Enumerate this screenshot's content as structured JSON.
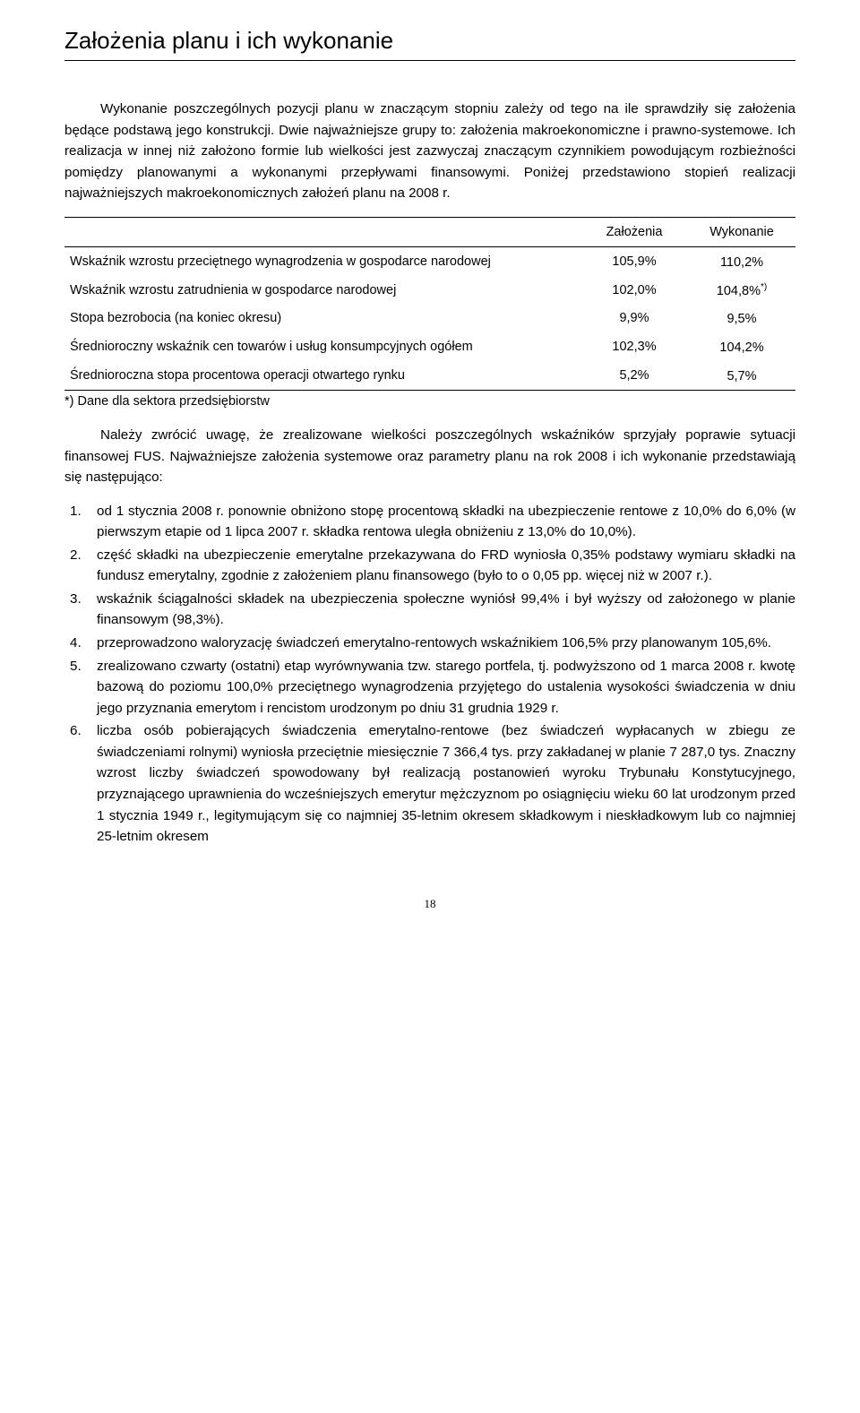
{
  "heading": "Założenia planu i ich wykonanie",
  "intro": "Wykonanie poszczególnych pozycji planu w znaczącym stopniu zależy od tego na ile sprawdziły się założenia będące podstawą jego konstrukcji. Dwie najważniejsze grupy to: założenia makroekonomiczne i prawno-systemowe. Ich realizacja w innej niż założono formie lub wielkości jest zazwyczaj znaczącym czynnikiem powodującym rozbieżności pomiędzy planowanymi a wykonanymi przepływami finansowymi. Poniżej przedstawiono stopień realizacji najważniejszych makroekonomicznych założeń planu na 2008 r.",
  "table": {
    "columns": [
      "",
      "Założenia",
      "Wykonanie"
    ],
    "rows": [
      {
        "label": "Wskaźnik wzrostu przeciętnego wynagrodzenia w gospodarce narodowej",
        "zal": "105,9%",
        "wyk": "110,2%",
        "sup": ""
      },
      {
        "label": "Wskaźnik wzrostu zatrudnienia w gospodarce narodowej",
        "zal": "102,0%",
        "wyk": "104,8%",
        "sup": "*)"
      },
      {
        "label": "Stopa bezrobocia (na koniec okresu)",
        "zal": "9,9%",
        "wyk": "9,5%",
        "sup": ""
      },
      {
        "label": "Średnioroczny wskaźnik cen towarów i usług konsumpcyjnych ogółem",
        "zal": "102,3%",
        "wyk": "104,2%",
        "sup": ""
      },
      {
        "label": "Średnioroczna stopa procentowa operacji otwartego rynku",
        "zal": "5,2%",
        "wyk": "5,7%",
        "sup": ""
      }
    ],
    "footnote": "*) Dane dla sektora przedsiębiorstw"
  },
  "para2": "Należy zwrócić uwagę, że zrealizowane wielkości poszczególnych wskaźników sprzyjały poprawie sytuacji finansowej FUS. Najważniejsze założenia systemowe oraz parametry planu na rok 2008 i ich wykonanie przedstawiają się następująco:",
  "list": [
    "od 1 stycznia 2008 r. ponownie obniżono stopę procentową składki na ubezpieczenie rentowe z 10,0% do 6,0% (w pierwszym etapie od 1 lipca 2007 r. składka rentowa uległa obniżeniu z 13,0% do 10,0%).",
    "część składki na ubezpieczenie emerytalne przekazywana do FRD wyniosła 0,35% podstawy wymiaru składki na fundusz emerytalny, zgodnie z założeniem planu finansowego (było to o 0,05 pp. więcej niż w 2007 r.).",
    "wskaźnik ściągalności składek na ubezpieczenia społeczne wyniósł 99,4% i był wyższy od założonego w planie finansowym (98,3%).",
    "przeprowadzono waloryzację świadczeń emerytalno-rentowych wskaźnikiem 106,5% przy planowanym 105,6%.",
    "zrealizowano czwarty (ostatni) etap wyrównywania tzw. starego portfela, tj. podwyższono od 1 marca 2008 r. kwotę bazową do poziomu 100,0% przeciętnego wynagrodzenia przyjętego do ustalenia wysokości świadczenia w dniu jego przyznania emerytom i rencistom urodzonym po dniu 31 grudnia 1929 r.",
    "liczba osób pobierających świadczenia emerytalno-rentowe (bez świadczeń wypłacanych w zbiegu ze świadczeniami rolnymi) wyniosła przeciętnie miesięcznie 7 366,4 tys. przy zakładanej w planie 7 287,0 tys. Znaczny wzrost liczby świadczeń spowodowany był realizacją postanowień wyroku Trybunału Konstytucyjnego, przyznającego uprawnienia do wcześniejszych emerytur mężczyznom po osiągnięciu wieku 60 lat urodzonym przed 1 stycznia 1949 r., legitymującym się co najmniej 35-letnim okresem składkowym i nieskładkowym lub co najmniej 25-letnim okresem"
  ],
  "page_number": "18"
}
